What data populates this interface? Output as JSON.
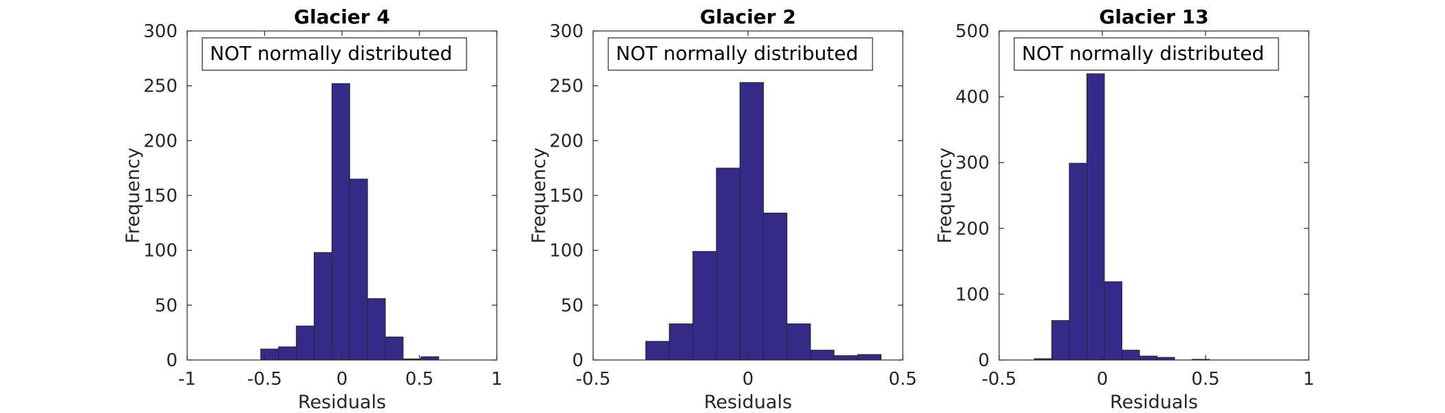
{
  "chart_data": [
    {
      "type": "bar",
      "title": "Glacier 4",
      "xlabel": "Residuals",
      "ylabel": "Frequency",
      "annotation": "NOT normally distributed",
      "xlim": [
        -1,
        1
      ],
      "ylim": [
        0,
        300
      ],
      "xticks": [
        -1,
        -0.5,
        0,
        0.5,
        1
      ],
      "xtick_labels": [
        "-1",
        "-0.5",
        "0",
        "0.5",
        "1"
      ],
      "yticks": [
        0,
        50,
        100,
        150,
        200,
        250,
        300
      ],
      "ytick_labels": [
        "0",
        "50",
        "100",
        "150",
        "200",
        "250",
        "300"
      ],
      "bin_edges": [
        -0.525,
        -0.41,
        -0.295,
        -0.18,
        -0.065,
        0.05,
        0.165,
        0.28,
        0.395,
        0.51,
        0.625
      ],
      "values": [
        10,
        12,
        31,
        98,
        252,
        165,
        56,
        21,
        1,
        3
      ],
      "bar_color": "#352a87"
    },
    {
      "type": "bar",
      "title": "Glacier 2",
      "xlabel": "Residuals",
      "ylabel": "Frequency",
      "annotation": "NOT normally distributed",
      "xlim": [
        -0.5,
        0.5
      ],
      "ylim": [
        0,
        300
      ],
      "xticks": [
        -0.5,
        0,
        0.5
      ],
      "xtick_labels": [
        "-0.5",
        "0",
        "0.5"
      ],
      "yticks": [
        0,
        50,
        100,
        150,
        200,
        250,
        300
      ],
      "ytick_labels": [
        "0",
        "50",
        "100",
        "150",
        "200",
        "250",
        "300"
      ],
      "bin_edges": [
        -0.33,
        -0.254,
        -0.178,
        -0.102,
        -0.026,
        0.05,
        0.126,
        0.202,
        0.278,
        0.354,
        0.43
      ],
      "values": [
        17,
        33,
        99,
        175,
        253,
        134,
        33,
        9,
        4,
        5
      ],
      "bar_color": "#352a87"
    },
    {
      "type": "bar",
      "title": "Glacier 13",
      "xlabel": "Residuals",
      "ylabel": "Frequency",
      "annotation": "NOT normally distributed",
      "xlim": [
        -0.5,
        1
      ],
      "ylim": [
        0,
        500
      ],
      "xticks": [
        -0.5,
        0,
        0.5,
        1
      ],
      "xtick_labels": [
        "-0.5",
        "0",
        "0.5",
        "1"
      ],
      "yticks": [
        0,
        100,
        200,
        300,
        400,
        500
      ],
      "ytick_labels": [
        "0",
        "100",
        "200",
        "300",
        "400",
        "500"
      ],
      "bin_edges": [
        -0.33,
        -0.245,
        -0.16,
        -0.075,
        0.01,
        0.095,
        0.18,
        0.265,
        0.35,
        0.435,
        0.52,
        0.605
      ],
      "values": [
        2,
        60,
        299,
        435,
        119,
        15,
        6,
        4,
        0,
        1,
        0
      ],
      "bar_color": "#352a87"
    }
  ]
}
